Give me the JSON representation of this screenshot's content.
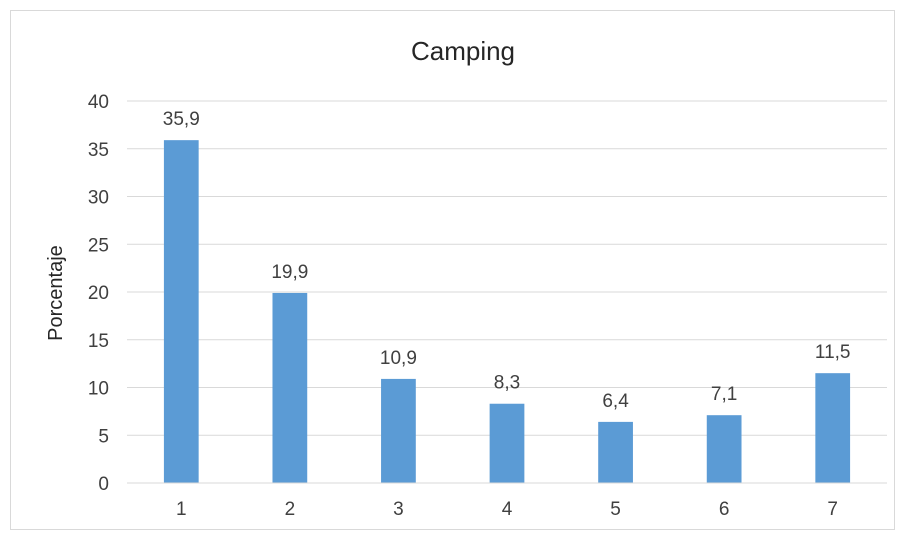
{
  "chart_data": {
    "type": "bar",
    "title": "Camping",
    "xlabel": "",
    "ylabel": "Porcentaje",
    "categories": [
      "1",
      "2",
      "3",
      "4",
      "5",
      "6",
      "7"
    ],
    "values": [
      35.9,
      19.9,
      10.9,
      8.3,
      6.4,
      7.1,
      11.5
    ],
    "data_labels": [
      "35,9",
      "19,9",
      "10,9",
      "8,3",
      "6,4",
      "7,1",
      "11,5"
    ],
    "yticks": [
      "0",
      "5",
      "10",
      "15",
      "20",
      "25",
      "30",
      "35",
      "40"
    ],
    "ylim": [
      0,
      40
    ],
    "grid": true,
    "legend": "none",
    "bar_color": "#5b9bd5",
    "grid_color": "#d9d9d9"
  }
}
